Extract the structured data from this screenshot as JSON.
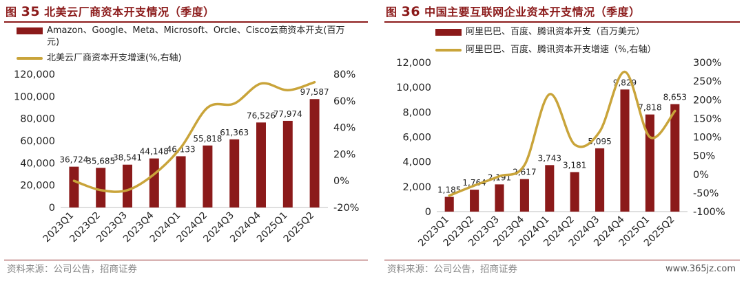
{
  "left": {
    "title_prefix": "图",
    "title_number": "35",
    "title_text": "北美云厂商资本开支情况（季度）",
    "legend_bar": "Amazon、Google、Meta、Microsoft、Orcle、Cisco云商资本开支(百万元)",
    "legend_line": "北美云厂商资本开支增速(%,右轴)",
    "source": "资料来源：公司公告，招商证券"
  },
  "right": {
    "title_prefix": "图",
    "title_number": "36",
    "title_text": "中国主要互联网企业资本开支情况（季度）",
    "legend_bar": "阿里巴巴、百度、腾讯资本开支（百万美元）",
    "legend_line": "阿里巴巴、百度、腾讯资本开支增速（%,右轴）",
    "source": "资料来源：公司公告，招商证券",
    "watermark": "www.365jz.com"
  },
  "colors": {
    "bar": "#8b1a1a",
    "line": "#c9a43a",
    "title": "#8b1a1a"
  },
  "chart_data": [
    {
      "type": "bar",
      "categories": [
        "2023Q1",
        "2023Q2",
        "2023Q3",
        "2023Q4",
        "2024Q1",
        "2024Q2",
        "2024Q3",
        "2024Q4",
        "2025Q1",
        "2025Q2"
      ],
      "series": [
        {
          "name": "Amazon、Google、Meta、Microsoft、Orcle、Cisco云商资本开支(百万元)",
          "type": "bar",
          "axis": "left",
          "values": [
            36724,
            35685,
            38541,
            44148,
            46133,
            55818,
            61363,
            76526,
            77974,
            97587
          ],
          "labels": [
            "36,724",
            "35,685",
            "38,541",
            "44,148",
            "46,133",
            "55,818",
            "61,363",
            "76,526",
            "77,974",
            "97,587"
          ]
        },
        {
          "name": "北美云厂商资本开支增速(%,右轴)",
          "type": "line",
          "axis": "right",
          "values": [
            0,
            -7,
            -7,
            5,
            25,
            55,
            58,
            73,
            68,
            74
          ]
        }
      ],
      "y_left": {
        "min": 0,
        "max": 120000,
        "ticks": [
          "0",
          "20,000",
          "40,000",
          "60,000",
          "80,000",
          "100,000",
          "120,000"
        ]
      },
      "y_right": {
        "min": -20,
        "max": 80,
        "ticks": [
          "-20%",
          "0%",
          "20%",
          "40%",
          "60%",
          "80%"
        ]
      }
    },
    {
      "type": "bar",
      "categories": [
        "2023Q1",
        "2023Q2",
        "2023Q3",
        "2023Q4",
        "2024Q1",
        "2024Q2",
        "2024Q3",
        "2024Q4",
        "2025Q1",
        "2025Q2"
      ],
      "series": [
        {
          "name": "阿里巴巴、百度、腾讯资本开支（百万美元）",
          "type": "bar",
          "axis": "left",
          "values": [
            1185,
            1764,
            2191,
            2617,
            3743,
            3181,
            5095,
            9829,
            7818,
            8653
          ],
          "labels": [
            "1,185",
            "1,764",
            "2,191",
            "2,617",
            "3,743",
            "3,181",
            "5,095",
            "9,829",
            "7,818",
            "8,653"
          ]
        },
        {
          "name": "阿里巴巴、百度、腾讯资本开支增速（%,右轴）",
          "type": "line",
          "axis": "right",
          "values": [
            -57,
            -30,
            -5,
            25,
            215,
            80,
            115,
            275,
            100,
            170
          ]
        }
      ],
      "y_left": {
        "min": 0,
        "max": 12000,
        "ticks": [
          "0",
          "2,000",
          "4,000",
          "6,000",
          "8,000",
          "10,000",
          "12,000"
        ]
      },
      "y_right": {
        "min": -100,
        "max": 300,
        "ticks": [
          "-100%",
          "-50%",
          "0%",
          "50%",
          "100%",
          "150%",
          "200%",
          "250%",
          "300%"
        ]
      }
    }
  ]
}
